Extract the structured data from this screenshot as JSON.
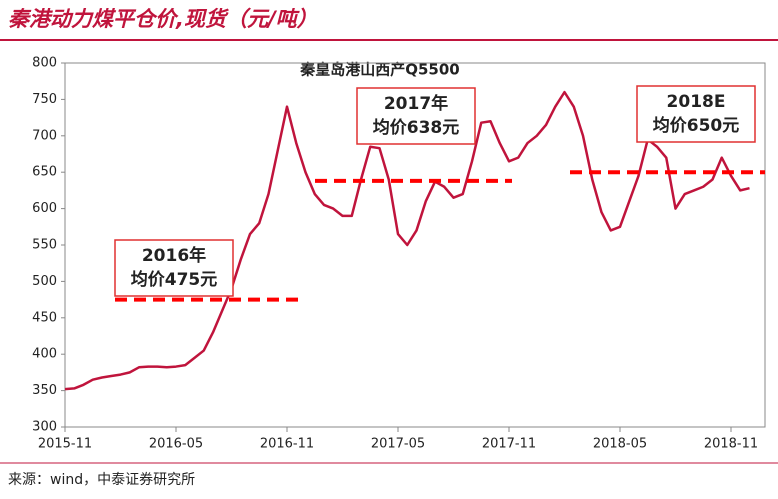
{
  "header": {
    "title": "秦港动力煤平仓价,现货（元/吨）"
  },
  "source": "来源：wind，中泰证券研究所",
  "chart_data": {
    "type": "line",
    "title": "秦皇岛港山西产Q5500",
    "categories": [
      "2015-11",
      null,
      null,
      null,
      null,
      null,
      null,
      null,
      null,
      null,
      null,
      null,
      "2016-05",
      null,
      null,
      null,
      null,
      null,
      null,
      null,
      null,
      null,
      null,
      null,
      "2016-11",
      null,
      null,
      null,
      null,
      null,
      null,
      null,
      null,
      null,
      null,
      null,
      "2017-05",
      null,
      null,
      null,
      null,
      null,
      null,
      null,
      null,
      null,
      null,
      null,
      "2017-11",
      null,
      null,
      null,
      null,
      null,
      null,
      null,
      null,
      null,
      null,
      null,
      "2018-05",
      null,
      null,
      null,
      null,
      null,
      null,
      null,
      null,
      null,
      null,
      null,
      "2018-11",
      null,
      null
    ],
    "series": [
      {
        "name": "秦皇岛港山西产Q5500",
        "color": "#c0143c",
        "values": [
          352,
          353,
          358,
          365,
          368,
          370,
          372,
          375,
          382,
          383,
          383,
          382,
          383,
          385,
          395,
          405,
          430,
          460,
          490,
          530,
          565,
          580,
          620,
          680,
          740,
          690,
          650,
          620,
          605,
          600,
          590,
          590,
          640,
          685,
          683,
          640,
          565,
          550,
          570,
          610,
          637,
          630,
          615,
          620,
          665,
          718,
          720,
          690,
          665,
          670,
          690,
          700,
          715,
          740,
          760,
          740,
          700,
          640,
          595,
          570,
          575,
          610,
          645,
          695,
          685,
          670,
          600,
          620,
          625,
          630,
          640,
          670,
          645,
          625,
          628
        ]
      }
    ],
    "averages": [
      {
        "year_label": "2016年",
        "label": "均价475元",
        "value": 475,
        "color": "#ff0000"
      },
      {
        "year_label": "2017年",
        "label": "均价638元",
        "value": 638,
        "color": "#ff0000"
      },
      {
        "year_label": "2018E",
        "label": "均价650元",
        "value": 650,
        "color": "#ff0000"
      }
    ],
    "ylim": [
      300,
      800
    ],
    "yticks": [
      300,
      350,
      400,
      450,
      500,
      550,
      600,
      650,
      700,
      750,
      800
    ]
  }
}
